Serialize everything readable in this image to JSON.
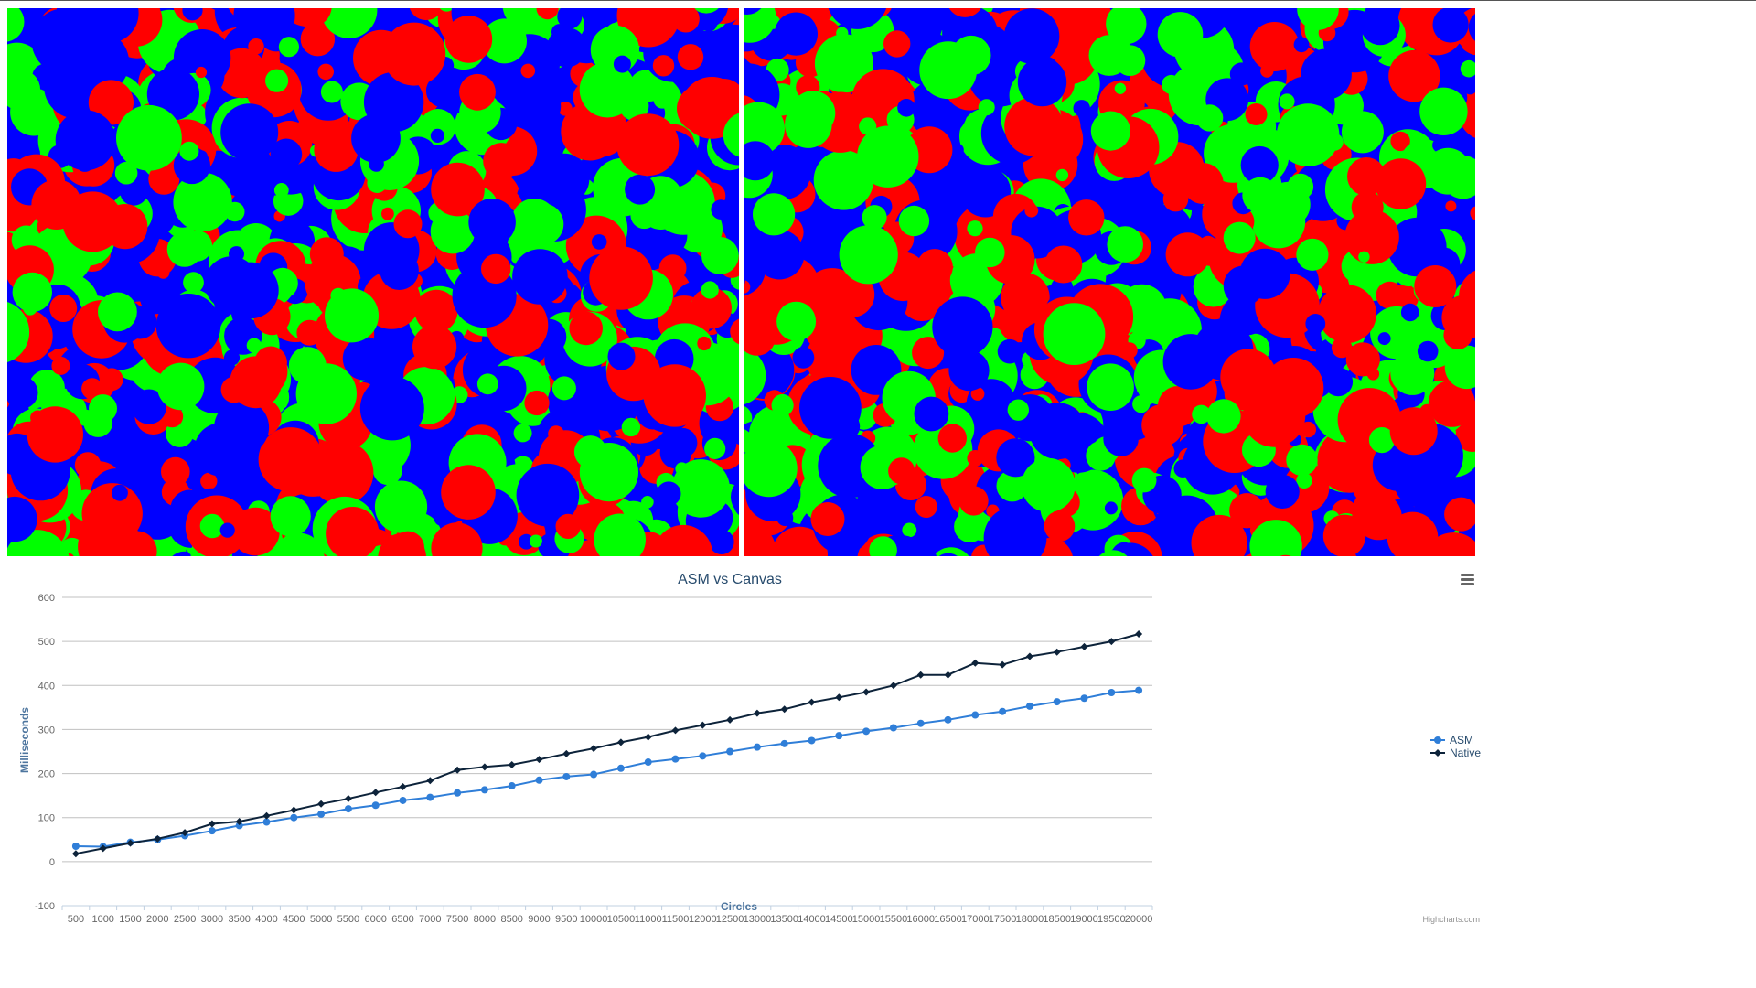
{
  "canvases": {
    "left": {
      "name": "ASM",
      "colors": [
        "#ff0000",
        "#00ff00",
        "#0000ff"
      ]
    },
    "right": {
      "name": "Native",
      "colors": [
        "#ff0000",
        "#00ff00",
        "#0000ff"
      ]
    }
  },
  "chart_data": {
    "type": "line",
    "title": "ASM vs Canvas",
    "xlabel": "Circles",
    "ylabel": "Milliseconds",
    "ylim": [
      -100,
      600
    ],
    "yticks": [
      "600",
      "500",
      "400",
      "300",
      "200",
      "100",
      "0",
      "-100"
    ],
    "categories": [
      "500",
      "1000",
      "1500",
      "2000",
      "2500",
      "3000",
      "3500",
      "4000",
      "4500",
      "5000",
      "5500",
      "6000",
      "6500",
      "7000",
      "7500",
      "8000",
      "8500",
      "9000",
      "9500",
      "10000",
      "10500",
      "11000",
      "11500",
      "12000",
      "12500",
      "13000",
      "13500",
      "14000",
      "14500",
      "15000",
      "15500",
      "16000",
      "16500",
      "17000",
      "17500",
      "18000",
      "18500",
      "19000",
      "19500",
      "20000"
    ],
    "series": [
      {
        "name": "ASM",
        "color": "#2f7ed8",
        "marker": "circle",
        "values": [
          35,
          34,
          44,
          50,
          59,
          70,
          82,
          90,
          100,
          108,
          120,
          128,
          139,
          146,
          156,
          163,
          172,
          185,
          193,
          198,
          212,
          226,
          233,
          240,
          250,
          260,
          268,
          275,
          286,
          296,
          304,
          314,
          322,
          333,
          341,
          353,
          363,
          371,
          384,
          389
        ]
      },
      {
        "name": "Native",
        "color": "#0d233a",
        "marker": "diamond",
        "values": [
          18,
          30,
          42,
          52,
          66,
          86,
          91,
          104,
          117,
          131,
          143,
          157,
          170,
          184,
          208,
          215,
          220,
          232,
          245,
          257,
          271,
          283,
          298,
          310,
          322,
          337,
          346,
          362,
          373,
          385,
          400,
          424,
          424,
          451,
          447,
          466,
          476,
          488,
          500,
          517
        ]
      }
    ],
    "grid": true,
    "legend_position": "right",
    "credits": "Highcharts.com"
  }
}
